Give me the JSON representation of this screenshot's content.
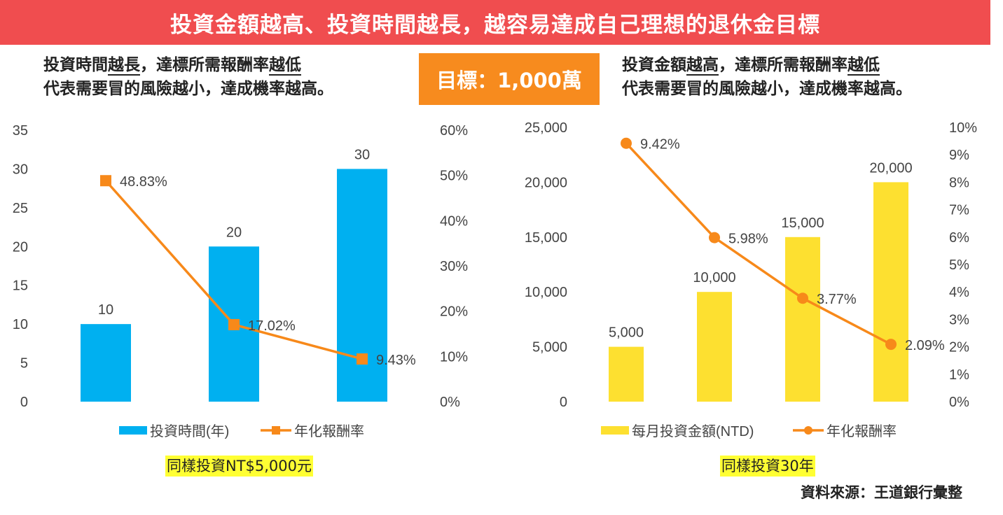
{
  "banner": {
    "title": "投資金額越高、投資時間越長，越容易達成自己理想的退休金目標"
  },
  "target_box": {
    "label": "目標：1,000萬"
  },
  "left_heading": {
    "pre": "投資時間",
    "u1": "越長",
    "mid": "，達標所需報酬率",
    "u2": "越低",
    "line2": "代表需要冒的風險越小，達成機率越高。"
  },
  "right_heading": {
    "pre": "投資金額",
    "u1": "越高",
    "mid": "，達標所需報酬率",
    "u2": "越低",
    "line2": "代表需要冒的風險越小，達成機率越高。"
  },
  "left_note": "同樣投資NT$5,000元",
  "right_note": "同樣投資30年",
  "source": "資料來源：王道銀行彙整",
  "colors": {
    "banner": "#f04d4f",
    "target": "#f78b1e",
    "blue_bar": "#00b0f0",
    "yellow_bar": "#fde030",
    "line": "#f7891a",
    "highlight": "#ffff33"
  },
  "chart_data": [
    {
      "type": "bar+line",
      "categories": [
        "",
        "",
        ""
      ],
      "series": [
        {
          "name": "投資時間(年)",
          "kind": "bar",
          "axis": "left",
          "values": [
            10,
            20,
            30
          ],
          "labels": [
            "10",
            "20",
            "30"
          ]
        },
        {
          "name": "年化報酬率",
          "kind": "line",
          "axis": "right",
          "marker": "square",
          "values": [
            48.83,
            17.02,
            9.43
          ],
          "labels": [
            "48.83%",
            "17.02%",
            "9.43%"
          ]
        }
      ],
      "y_left": {
        "min": 0,
        "max": 35,
        "ticks": [
          "0",
          "5",
          "10",
          "15",
          "20",
          "25",
          "30",
          "35"
        ]
      },
      "y_right": {
        "min": 0,
        "max": 60,
        "ticks": [
          "0%",
          "10%",
          "20%",
          "30%",
          "40%",
          "50%",
          "60%"
        ]
      },
      "grid": false,
      "legend": "bottom"
    },
    {
      "type": "bar+line",
      "categories": [
        "",
        "",
        "",
        ""
      ],
      "series": [
        {
          "name": "每月投資金額(NTD)",
          "kind": "bar",
          "axis": "left",
          "values": [
            5000,
            10000,
            15000,
            20000
          ],
          "labels": [
            "5,000",
            "10,000",
            "15,000",
            "20,000"
          ]
        },
        {
          "name": "年化報酬率",
          "kind": "line",
          "axis": "right",
          "marker": "circle",
          "values": [
            9.42,
            5.98,
            3.77,
            2.09
          ],
          "labels": [
            "9.42%",
            "5.98%",
            "3.77%",
            "2.09%"
          ]
        }
      ],
      "y_left": {
        "min": 0,
        "max": 25000,
        "ticks": [
          "0",
          "5,000",
          "10,000",
          "15,000",
          "20,000",
          "25,000"
        ]
      },
      "y_right": {
        "min": 0,
        "max": 10,
        "ticks": [
          "0%",
          "1%",
          "2%",
          "3%",
          "4%",
          "5%",
          "6%",
          "7%",
          "8%",
          "9%",
          "10%"
        ]
      },
      "grid": false,
      "legend": "bottom"
    }
  ]
}
